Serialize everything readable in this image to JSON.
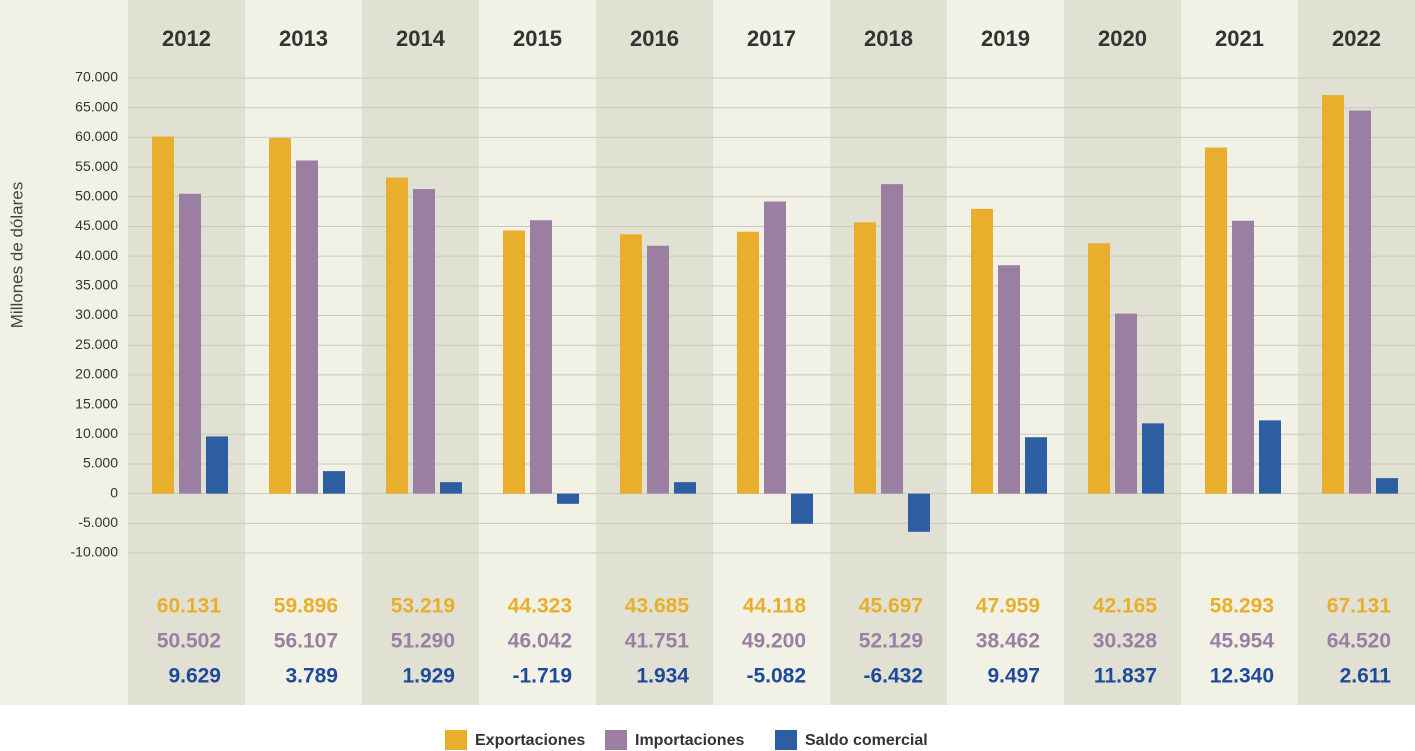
{
  "chart_data": {
    "type": "bar",
    "y_label": "Millones de dólares",
    "categories": [
      "2012",
      "2013",
      "2014",
      "2015",
      "2016",
      "2017",
      "2018",
      "2019",
      "2020",
      "2021",
      "2022"
    ],
    "series": [
      {
        "name": "Exportaciones",
        "color": "#e9ae2b",
        "values": [
          60131,
          59896,
          53219,
          44323,
          43685,
          44118,
          45697,
          47959,
          42165,
          58293,
          67131
        ],
        "value_labels": [
          "60.131",
          "59.896",
          "53.219",
          "44.323",
          "43.685",
          "44.118",
          "45.697",
          "47.959",
          "42.165",
          "58.293",
          "67.131"
        ]
      },
      {
        "name": "Importaciones",
        "color": "#9a7fa3",
        "values": [
          50502,
          56107,
          51290,
          46042,
          41751,
          49200,
          52129,
          38462,
          30328,
          45954,
          64520
        ],
        "value_labels": [
          "50.502",
          "56.107",
          "51.290",
          "46.042",
          "41.751",
          "49.200",
          "52.129",
          "38.462",
          "30.328",
          "45.954",
          "64.520"
        ]
      },
      {
        "name": "Saldo comercial",
        "color": "#2e5ea2",
        "values": [
          9629,
          3789,
          1929,
          -1719,
          1934,
          -5082,
          -6432,
          9497,
          11837,
          12340,
          2611
        ],
        "value_labels": [
          "9.629",
          "3.789",
          "1.929",
          "-1.719",
          "1.934",
          "-5.082",
          "-6.432",
          "9.497",
          "11.837",
          "12.340",
          "2.611"
        ]
      }
    ],
    "ylim": [
      -10000,
      70000
    ],
    "yticks": [
      {
        "value": -10000,
        "label": "-10.000"
      },
      {
        "value": -5000,
        "label": "-5.000"
      },
      0,
      {
        "value": 5000,
        "label": "5.000"
      },
      {
        "value": 10000,
        "label": "10.000"
      },
      {
        "value": 15000,
        "label": "15.000"
      },
      {
        "value": 20000,
        "label": "20.000"
      },
      {
        "value": 25000,
        "label": "25.000"
      },
      {
        "value": 30000,
        "label": "30.000"
      },
      {
        "value": 35000,
        "label": "35.000"
      },
      {
        "value": 40000,
        "label": "40.000"
      },
      {
        "value": 45000,
        "label": "45.000"
      },
      {
        "value": 50000,
        "label": "50.000"
      },
      {
        "value": 55000,
        "label": "55.000"
      },
      {
        "value": 60000,
        "label": "60.000"
      },
      {
        "value": 65000,
        "label": "65.000"
      },
      {
        "value": 70000,
        "label": "70.000"
      }
    ],
    "grid": true
  }
}
